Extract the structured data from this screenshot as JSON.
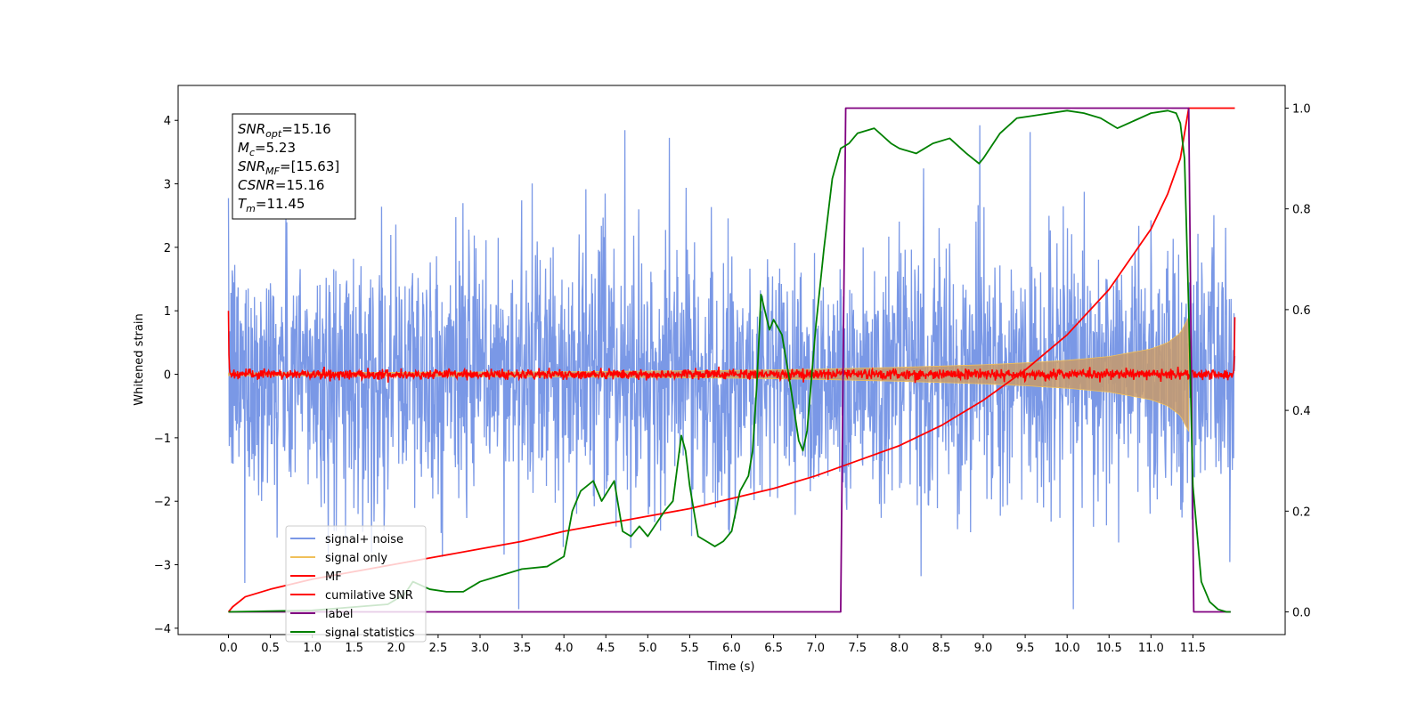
{
  "chart_data": {
    "type": "line",
    "title": "",
    "xlabel": "Time (s)",
    "ylabel_left": "Whitened strain",
    "ylabel_right": "",
    "xlim": [
      -0.6,
      12.6
    ],
    "ylim_left": [
      -4.1,
      4.55
    ],
    "ylim_right": [
      -0.045,
      1.045
    ],
    "x_ticks": [
      0.0,
      0.5,
      1.0,
      1.5,
      2.0,
      2.5,
      3.0,
      3.5,
      4.0,
      4.5,
      5.0,
      5.5,
      6.0,
      6.5,
      7.0,
      7.5,
      8.0,
      8.5,
      9.0,
      9.5,
      10.0,
      10.5,
      11.0,
      11.5
    ],
    "x_tick_labels": [
      "0.0",
      "0.5",
      "1.0",
      "1.5",
      "2.0",
      "2.5",
      "3.0",
      "3.5",
      "4.0",
      "4.5",
      "5.0",
      "5.5",
      "6.0",
      "6.5",
      "7.0",
      "7.5",
      "8.0",
      "8.5",
      "9.0",
      "9.5",
      "10.0",
      "10.5",
      "11.0",
      "11.5"
    ],
    "y_ticks_left": [
      -4,
      -3,
      -2,
      -1,
      0,
      1,
      2,
      3,
      4
    ],
    "y_tick_labels_left": [
      "−4",
      "−3",
      "−2",
      "−1",
      "0",
      "1",
      "2",
      "3",
      "4"
    ],
    "y_ticks_right": [
      0.0,
      0.2,
      0.4,
      0.6,
      0.8,
      1.0
    ],
    "y_tick_labels_right": [
      "0.0",
      "0.2",
      "0.4",
      "0.6",
      "0.8",
      "1.0"
    ],
    "grid": false,
    "legend_position": "lower-left",
    "annotation": {
      "lines": [
        {
          "var": "SNR",
          "sub": "opt",
          "value": "=15.16"
        },
        {
          "var": "M",
          "sub": "c",
          "value": "=5.23"
        },
        {
          "var": "SNR",
          "sub": "MF",
          "value": "=[15.63]"
        },
        {
          "var": "CSNR",
          "sub": "",
          "value": "=15.16"
        },
        {
          "var": "T",
          "sub": "m",
          "value": "=11.45"
        }
      ]
    },
    "series": [
      {
        "name": "signal+ noise",
        "axis": "left",
        "color": "#6b8de3",
        "kind": "noise-band",
        "x_range": [
          0.0,
          12.0
        ],
        "typical_amplitude": 1.0,
        "peak_range": [
          -3.7,
          4.2
        ]
      },
      {
        "name": "signal only",
        "axis": "left",
        "color": "#f0c05a",
        "kind": "chirp-envelope",
        "x_range": [
          0.0,
          11.45
        ],
        "envelope_x": [
          0.0,
          2.0,
          4.0,
          6.0,
          7.0,
          8.0,
          9.0,
          9.5,
          10.0,
          10.5,
          11.0,
          11.2,
          11.35,
          11.45
        ],
        "envelope_y": [
          0.02,
          0.03,
          0.04,
          0.06,
          0.08,
          0.11,
          0.15,
          0.18,
          0.22,
          0.28,
          0.4,
          0.5,
          0.65,
          0.9
        ]
      },
      {
        "name": "MF",
        "axis": "left",
        "color": "#ff0000",
        "kind": "noise-thin",
        "x_range": [
          0.0,
          12.0
        ],
        "start_value": 1.0,
        "end_value": 0.9,
        "typical_amplitude": 0.08
      },
      {
        "name": "cumilative SNR",
        "axis": "right",
        "color": "#ff0000",
        "x": [
          0.0,
          0.05,
          0.2,
          0.5,
          1.0,
          1.5,
          2.0,
          2.5,
          3.0,
          3.5,
          4.0,
          4.5,
          5.0,
          5.5,
          6.0,
          6.5,
          7.0,
          7.5,
          8.0,
          8.5,
          9.0,
          9.5,
          10.0,
          10.5,
          11.0,
          11.2,
          11.35,
          11.45,
          12.0
        ],
        "y": [
          0.0,
          0.01,
          0.03,
          0.045,
          0.065,
          0.08,
          0.095,
          0.11,
          0.125,
          0.14,
          0.16,
          0.175,
          0.19,
          0.205,
          0.225,
          0.245,
          0.27,
          0.3,
          0.33,
          0.37,
          0.42,
          0.48,
          0.55,
          0.64,
          0.76,
          0.83,
          0.9,
          1.0,
          1.0
        ]
      },
      {
        "name": "label",
        "axis": "right",
        "color": "#800080",
        "x": [
          0.0,
          7.3,
          7.36,
          11.45,
          11.51,
          11.95
        ],
        "y": [
          0.0,
          0.0,
          1.0,
          1.0,
          0.0,
          0.0
        ]
      },
      {
        "name": "signal statistics",
        "axis": "right",
        "color": "#008000",
        "x": [
          0.0,
          1.0,
          1.9,
          2.1,
          2.2,
          2.4,
          2.6,
          2.8,
          3.0,
          3.2,
          3.5,
          3.8,
          4.0,
          4.1,
          4.2,
          4.35,
          4.45,
          4.6,
          4.7,
          4.8,
          4.9,
          5.0,
          5.2,
          5.3,
          5.4,
          5.45,
          5.5,
          5.6,
          5.7,
          5.8,
          5.9,
          6.0,
          6.1,
          6.2,
          6.25,
          6.3,
          6.35,
          6.45,
          6.5,
          6.6,
          6.7,
          6.8,
          6.85,
          6.9,
          7.0,
          7.1,
          7.2,
          7.3,
          7.4,
          7.5,
          7.7,
          7.9,
          8.0,
          8.2,
          8.4,
          8.6,
          8.8,
          8.95,
          9.0,
          9.2,
          9.4,
          9.6,
          9.8,
          10.0,
          10.2,
          10.4,
          10.6,
          10.8,
          11.0,
          11.2,
          11.3,
          11.35,
          11.4,
          11.45,
          11.5,
          11.6,
          11.7,
          11.8,
          11.9,
          11.95
        ],
        "y": [
          0.0,
          0.003,
          0.015,
          0.035,
          0.06,
          0.045,
          0.04,
          0.04,
          0.06,
          0.07,
          0.085,
          0.09,
          0.11,
          0.2,
          0.24,
          0.26,
          0.22,
          0.26,
          0.16,
          0.15,
          0.17,
          0.15,
          0.2,
          0.22,
          0.35,
          0.32,
          0.25,
          0.15,
          0.14,
          0.13,
          0.14,
          0.16,
          0.24,
          0.27,
          0.32,
          0.45,
          0.63,
          0.56,
          0.58,
          0.55,
          0.45,
          0.34,
          0.32,
          0.36,
          0.56,
          0.72,
          0.86,
          0.92,
          0.93,
          0.95,
          0.96,
          0.93,
          0.92,
          0.91,
          0.93,
          0.94,
          0.91,
          0.89,
          0.9,
          0.95,
          0.98,
          0.985,
          0.99,
          0.995,
          0.99,
          0.98,
          0.96,
          0.975,
          0.99,
          0.995,
          0.99,
          0.97,
          0.9,
          0.6,
          0.25,
          0.06,
          0.02,
          0.005,
          0.0,
          0.0
        ]
      }
    ]
  }
}
